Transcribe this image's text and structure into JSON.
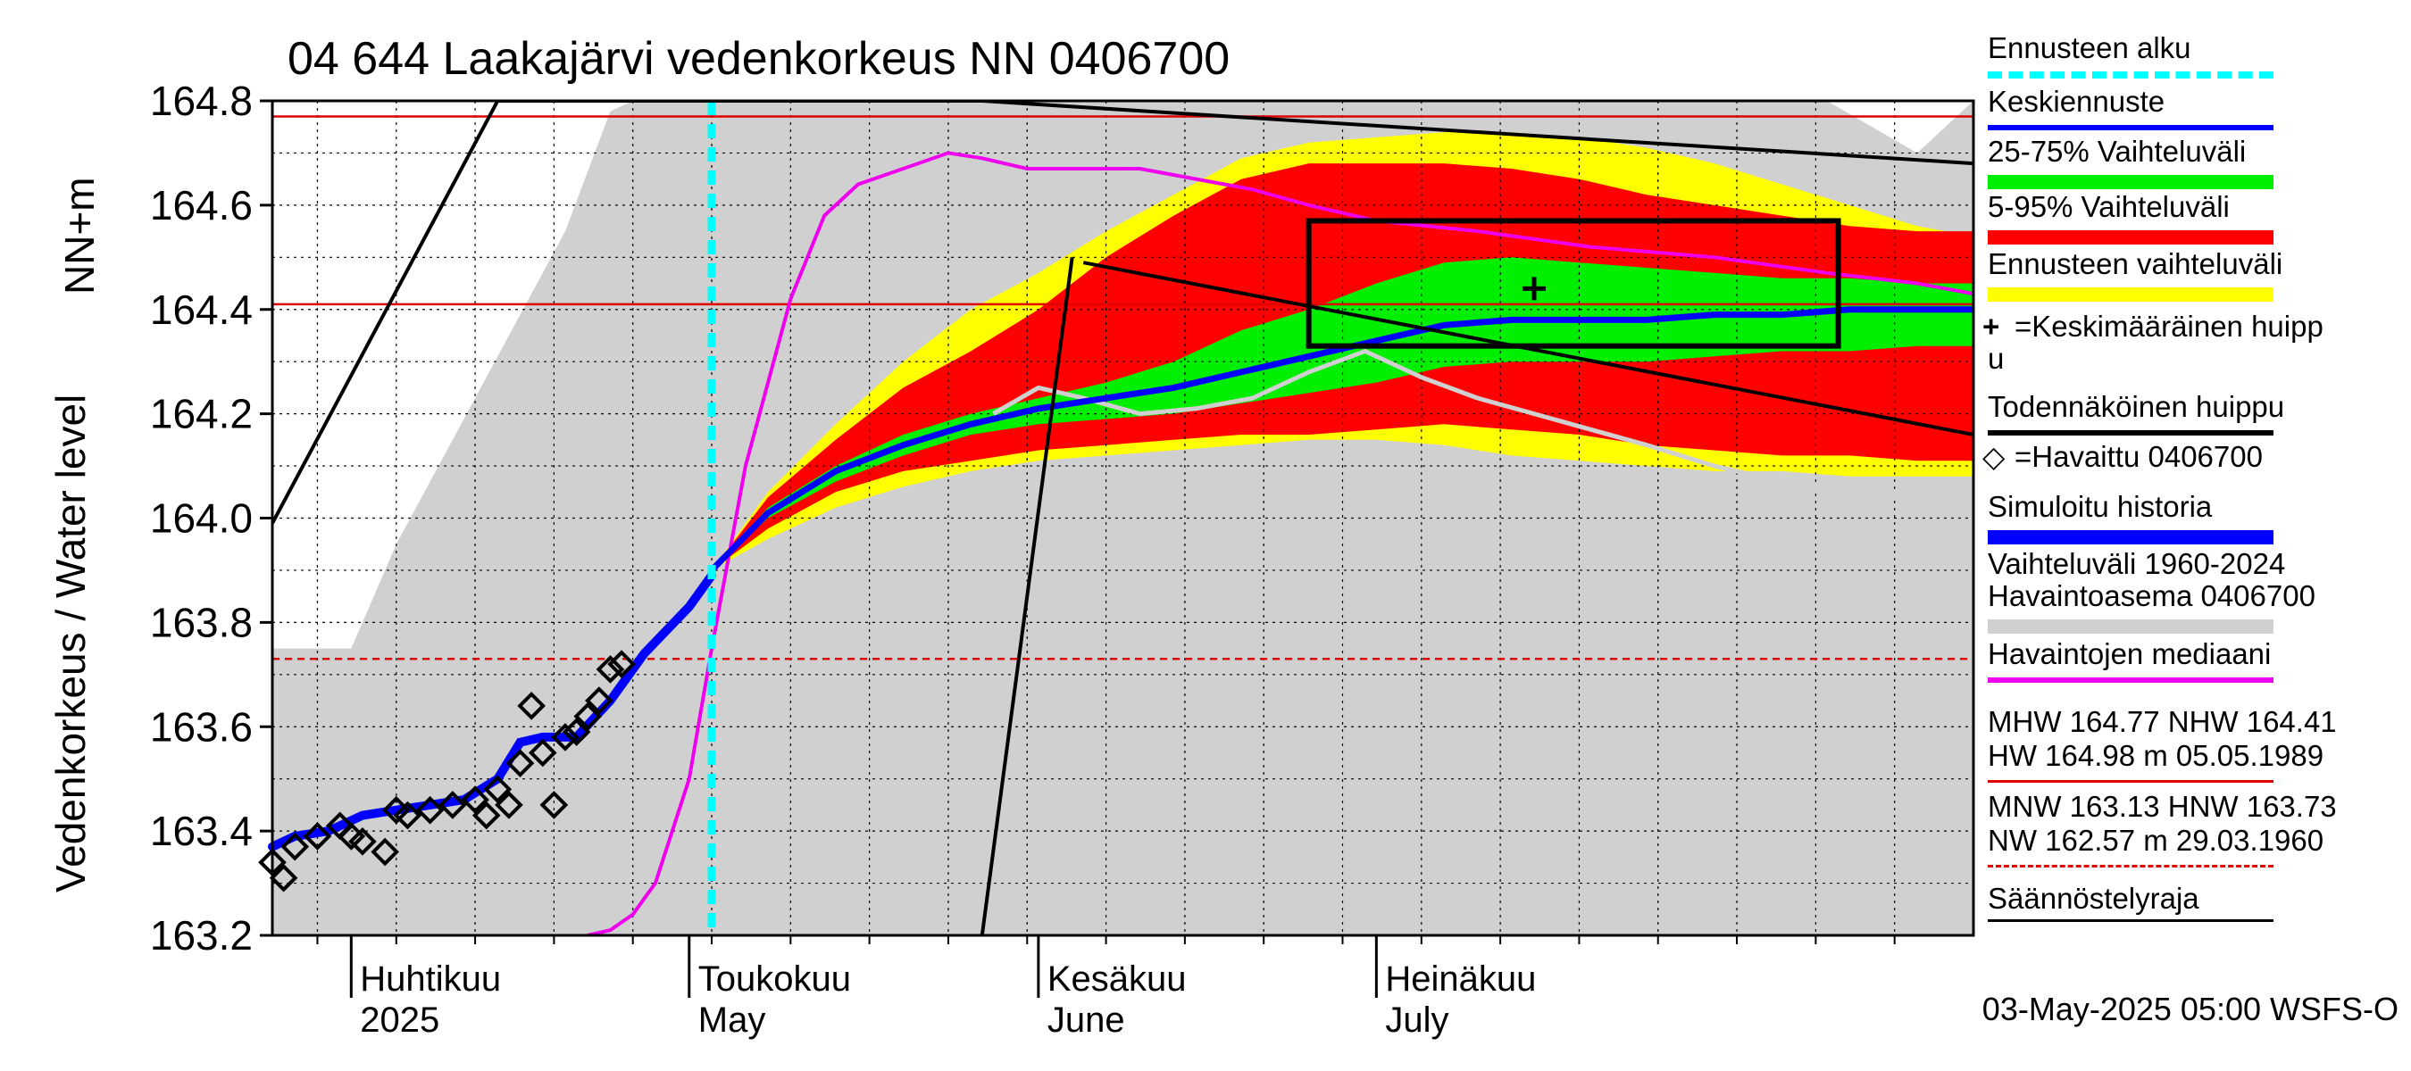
{
  "chart_data": {
    "type": "line",
    "title": "04 644 Laakajärvi vedenkorkeus NN 0406700",
    "ylabel_top": "NN+m",
    "ylabel": "Vedenkorkeus / Water level",
    "ylim": [
      163.2,
      164.8
    ],
    "yticks": [
      "164.8",
      "164.6",
      "164.4",
      "164.2",
      "164.0",
      "163.8",
      "163.6",
      "163.4",
      "163.2"
    ],
    "xlim": [
      "2025-03-25",
      "2025-08-23"
    ],
    "grid": true,
    "months": [
      {
        "fi": "Huhtikuu",
        "en": "2025",
        "start": "2025-04-01"
      },
      {
        "fi": "Toukokuu",
        "en": "May",
        "start": "2025-05-01"
      },
      {
        "fi": "Kesäkuu",
        "en": "June",
        "start": "2025-06-01"
      },
      {
        "fi": "Heinäkuu",
        "en": "July",
        "start": "2025-07-01"
      }
    ],
    "forecast_start": "2025-05-03",
    "reference_lines": [
      {
        "name": "MHW",
        "value": 164.77,
        "color": "#e00000",
        "style": "solid"
      },
      {
        "name": "NHW",
        "value": 164.41,
        "color": "#e00000",
        "style": "solid"
      },
      {
        "name": "HNW",
        "value": 163.73,
        "color": "#e00000",
        "style": "dashed"
      }
    ],
    "historical_range": {
      "x": [
        "2025-03-25",
        "2025-04-01",
        "2025-04-05",
        "2025-04-10",
        "2025-04-15",
        "2025-04-20",
        "2025-04-24",
        "2025-04-26",
        "2025-04-28",
        "2025-05-03",
        "2025-05-10",
        "2025-05-20",
        "2025-05-25",
        "2025-05-31",
        "2025-06-10",
        "2025-06-20",
        "2025-06-30",
        "2025-07-10",
        "2025-07-20",
        "2025-07-31",
        "2025-08-10",
        "2025-08-18",
        "2025-08-23"
      ],
      "upper": [
        163.75,
        163.75,
        163.95,
        164.15,
        164.35,
        164.55,
        164.78,
        164.8,
        164.8,
        164.8,
        164.8,
        164.8,
        164.8,
        164.8,
        164.8,
        164.8,
        164.8,
        164.8,
        164.8,
        164.8,
        164.8,
        164.7,
        164.8
      ],
      "lower": [
        163.2,
        163.2,
        163.2,
        163.2,
        163.2,
        163.2,
        163.2,
        163.2,
        163.2,
        163.2,
        163.2,
        163.2,
        163.2,
        163.2,
        163.2,
        163.2,
        163.2,
        163.2,
        163.2,
        163.2,
        163.2,
        163.2,
        163.2
      ]
    },
    "forecast_x": [
      "2025-05-03",
      "2025-05-08",
      "2025-05-14",
      "2025-05-20",
      "2025-05-26",
      "2025-06-01",
      "2025-06-07",
      "2025-06-13",
      "2025-06-19",
      "2025-06-25",
      "2025-07-01",
      "2025-07-07",
      "2025-07-13",
      "2025-07-19",
      "2025-07-25",
      "2025-07-31",
      "2025-08-06",
      "2025-08-12",
      "2025-08-18",
      "2025-08-23"
    ],
    "forecast_band_envelope": {
      "name": "Ennusteen vaihteluväli",
      "color": "#ffff00",
      "upper": [
        163.9,
        164.05,
        164.18,
        164.3,
        164.4,
        164.47,
        164.55,
        164.62,
        164.69,
        164.72,
        164.73,
        164.74,
        164.74,
        164.73,
        164.71,
        164.68,
        164.64,
        164.6,
        164.56,
        164.54
      ],
      "lower": [
        163.9,
        163.96,
        164.02,
        164.06,
        164.09,
        164.11,
        164.12,
        164.13,
        164.14,
        164.15,
        164.15,
        164.14,
        164.12,
        164.11,
        164.1,
        164.09,
        164.09,
        164.08,
        164.08,
        164.08
      ]
    },
    "forecast_band_5_95": {
      "name": "5-95% Vaihteluväli",
      "color": "#ff0000",
      "upper": [
        163.9,
        164.04,
        164.15,
        164.25,
        164.32,
        164.4,
        164.5,
        164.58,
        164.65,
        164.68,
        164.68,
        164.68,
        164.67,
        164.65,
        164.62,
        164.6,
        164.58,
        164.56,
        164.55,
        164.55
      ],
      "lower": [
        163.9,
        163.98,
        164.05,
        164.09,
        164.11,
        164.13,
        164.14,
        164.15,
        164.16,
        164.16,
        164.17,
        164.18,
        164.17,
        164.16,
        164.14,
        164.13,
        164.12,
        164.12,
        164.11,
        164.11
      ]
    },
    "forecast_band_25_75": {
      "name": "25-75% Vaihteluväli",
      "color": "#00ee00",
      "upper": [
        163.9,
        164.02,
        164.1,
        164.16,
        164.2,
        164.23,
        164.26,
        164.3,
        164.36,
        164.4,
        164.45,
        164.49,
        164.5,
        164.49,
        164.48,
        164.47,
        164.46,
        164.46,
        164.45,
        164.45
      ],
      "lower": [
        163.9,
        164.0,
        164.07,
        164.12,
        164.16,
        164.18,
        164.19,
        164.2,
        164.22,
        164.24,
        164.26,
        164.29,
        164.3,
        164.3,
        164.3,
        164.31,
        164.32,
        164.32,
        164.33,
        164.33
      ]
    },
    "forecast_median": {
      "name": "Keskiennuste",
      "color": "#0000ff",
      "y": [
        163.9,
        164.01,
        164.09,
        164.14,
        164.18,
        164.21,
        164.23,
        164.25,
        164.28,
        164.31,
        164.34,
        164.37,
        164.38,
        164.38,
        164.38,
        164.39,
        164.39,
        164.4,
        164.4,
        164.4
      ]
    },
    "observed_median": {
      "name": "Havaintojen mediaani",
      "color": "#ee00ee",
      "x": [
        "2025-04-22",
        "2025-04-24",
        "2025-04-26",
        "2025-04-28",
        "2025-05-01",
        "2025-05-03",
        "2025-05-06",
        "2025-05-10",
        "2025-05-13",
        "2025-05-16",
        "2025-05-20",
        "2025-05-24",
        "2025-05-27",
        "2025-05-31",
        "2025-06-10",
        "2025-06-20",
        "2025-06-25",
        "2025-07-01",
        "2025-07-10",
        "2025-07-20",
        "2025-07-31",
        "2025-08-10",
        "2025-08-18",
        "2025-08-23"
      ],
      "y": [
        163.2,
        163.21,
        163.24,
        163.3,
        163.5,
        163.75,
        164.1,
        164.42,
        164.58,
        164.64,
        164.67,
        164.7,
        164.69,
        164.67,
        164.67,
        164.63,
        164.6,
        164.57,
        164.55,
        164.52,
        164.5,
        164.47,
        164.45,
        164.43
      ]
    },
    "simulated_history": {
      "name": "Simuloitu historia",
      "color": "#0000ff",
      "x": [
        "2025-03-25",
        "2025-03-27",
        "2025-03-30",
        "2025-04-02",
        "2025-04-05",
        "2025-04-08",
        "2025-04-11",
        "2025-04-14",
        "2025-04-16",
        "2025-04-18",
        "2025-04-21",
        "2025-04-24",
        "2025-04-27",
        "2025-05-01",
        "2025-05-03"
      ],
      "y": [
        163.37,
        163.39,
        163.4,
        163.43,
        163.44,
        163.45,
        163.46,
        163.5,
        163.57,
        163.58,
        163.58,
        163.65,
        163.74,
        163.83,
        163.89
      ]
    },
    "previous_year_sim": {
      "name": "",
      "color": "#d0d0d0",
      "x": [
        "2025-05-28",
        "2025-06-01",
        "2025-06-05",
        "2025-06-10",
        "2025-06-15",
        "2025-06-20",
        "2025-06-25",
        "2025-06-30",
        "2025-07-05",
        "2025-07-10",
        "2025-07-15",
        "2025-07-20",
        "2025-07-25",
        "2025-07-31",
        "2025-08-06",
        "2025-08-12",
        "2025-08-18",
        "2025-08-23"
      ],
      "y": [
        164.2,
        164.25,
        164.23,
        164.2,
        164.21,
        164.23,
        164.28,
        164.32,
        164.27,
        164.23,
        164.2,
        164.17,
        164.14,
        164.1,
        164.07,
        164.05,
        164.04,
        164.03
      ]
    },
    "observed": {
      "name": "Havaittu 0406700",
      "x": [
        "2025-03-25",
        "2025-03-27",
        "2025-03-29",
        "2025-03-31",
        "2025-04-02",
        "2025-04-04",
        "2025-04-06",
        "2025-04-08",
        "2025-04-10",
        "2025-04-12",
        "2025-04-14",
        "2025-04-16",
        "2025-04-18",
        "2025-04-20",
        "2025-04-22",
        "2025-04-24",
        "2025-03-26",
        "2025-04-01",
        "2025-04-05",
        "2025-04-13",
        "2025-04-15",
        "2025-04-17",
        "2025-04-19",
        "2025-04-21",
        "2025-04-23",
        "2025-04-25"
      ],
      "y": [
        163.34,
        163.37,
        163.39,
        163.41,
        163.38,
        163.36,
        163.43,
        163.44,
        163.45,
        163.46,
        163.48,
        163.53,
        163.55,
        163.58,
        163.62,
        163.71,
        163.31,
        163.39,
        163.44,
        163.43,
        163.45,
        163.64,
        163.45,
        163.59,
        163.65,
        163.72
      ]
    },
    "mean_peak": {
      "name": "Keskimääräinen huippu",
      "x": "2025-07-15",
      "y": 164.44
    },
    "probable_peak_box": {
      "name": "Todennäköinen huippu",
      "x": [
        "2025-06-25",
        "2025-08-11"
      ],
      "y": [
        164.33,
        164.57
      ]
    },
    "probable_peak_lines": [
      {
        "x": [
          "2025-03-25",
          "2025-04-14",
          "2025-05-27",
          "2025-08-23"
        ],
        "y": [
          163.99,
          164.8,
          164.8,
          164.68
        ]
      },
      {
        "x": [
          "2025-05-27",
          "2025-06-04"
        ],
        "y": [
          163.2,
          164.5
        ]
      },
      {
        "x": [
          "2025-06-05",
          "2025-08-23"
        ],
        "y": [
          164.49,
          164.16
        ]
      }
    ]
  },
  "legend": {
    "items": [
      {
        "label": "Ennusteen alku",
        "color": "#00ffff",
        "kind": "dashed"
      },
      {
        "label": "Keskiennuste",
        "color": "#0000ff",
        "kind": "line"
      },
      {
        "label": "25-75% Vaihteluväli",
        "color": "#00ee00",
        "kind": "band"
      },
      {
        "label": "5-95% Vaihteluväli",
        "color": "#ff0000",
        "kind": "band"
      },
      {
        "label": "Ennusteen vaihteluväli",
        "color": "#ffff00",
        "kind": "band"
      },
      {
        "label": "=Keskimääräinen huipp",
        "label2": "u",
        "marker": "+",
        "color": "#000000",
        "kind": "marker"
      },
      {
        "label": "Todennäköinen huippu",
        "color": "#000000",
        "kind": "line"
      },
      {
        "label": "=Havaittu 0406700",
        "marker": "◇",
        "color": "#000000",
        "kind": "marker"
      },
      {
        "label": "Simuloitu historia",
        "color": "#0000ff",
        "kind": "band"
      },
      {
        "label": "Vaihteluväli 1960-2024",
        "label2": " Havaintoasema 0406700",
        "color": "#d0d0d0",
        "kind": "band"
      },
      {
        "label": "Havaintojen mediaani",
        "color": "#ee00ee",
        "kind": "line"
      }
    ],
    "stats": [
      {
        "line1": "MHW 164.77 NHW 164.41",
        "line2": "HW 164.98 m 05.05.1989",
        "color": "#e00000",
        "kind": "solid"
      },
      {
        "line1": "MNW 163.13 HNW 163.73",
        "line2": "NW 162.57 m 29.03.1960",
        "color": "#e00000",
        "kind": "dashed"
      },
      {
        "line1": "Säännöstelyraja",
        "line2": "",
        "color": "#000000",
        "kind": "solid"
      }
    ]
  },
  "footer": "03-May-2025 05:00 WSFS-O"
}
